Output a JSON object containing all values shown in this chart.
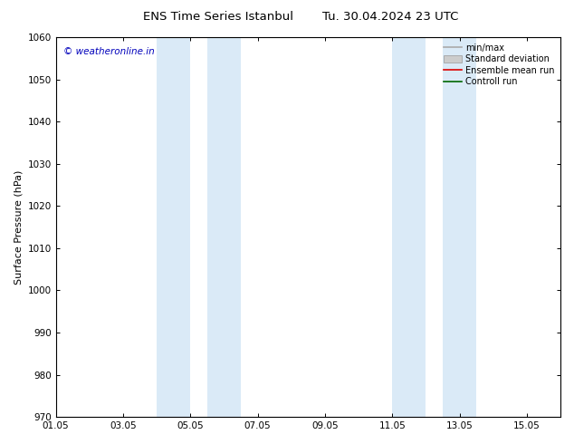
{
  "title_left": "ENS Time Series Istanbul",
  "title_right": "Tu. 30.04.2024 23 UTC",
  "ylabel": "Surface Pressure (hPa)",
  "ylim": [
    970,
    1060
  ],
  "yticks": [
    970,
    980,
    990,
    1000,
    1010,
    1020,
    1030,
    1040,
    1050,
    1060
  ],
  "xlim_start": 0,
  "xlim_end": 15,
  "xtick_labels": [
    "01.05",
    "03.05",
    "05.05",
    "07.05",
    "09.05",
    "11.05",
    "13.05",
    "15.05"
  ],
  "xtick_positions": [
    0,
    2,
    4,
    6,
    8,
    10,
    12,
    14
  ],
  "shaded_bands": [
    {
      "xmin": 3.0,
      "xmax": 4.0
    },
    {
      "xmin": 4.5,
      "xmax": 5.5
    },
    {
      "xmin": 10.0,
      "xmax": 11.0
    },
    {
      "xmin": 11.5,
      "xmax": 12.5
    }
  ],
  "shade_color": "#daeaf7",
  "background_color": "#ffffff",
  "watermark_text": "© weatheronline.in",
  "watermark_color": "#0000bb",
  "legend_items": [
    {
      "label": "min/max",
      "color": "#aaaaaa",
      "lw": 1.2,
      "type": "line"
    },
    {
      "label": "Standard deviation",
      "color": "#cccccc",
      "lw": 5,
      "type": "bar"
    },
    {
      "label": "Ensemble mean run",
      "color": "#dd0000",
      "lw": 1.2,
      "type": "line"
    },
    {
      "label": "Controll run",
      "color": "#006600",
      "lw": 1.2,
      "type": "line"
    }
  ],
  "title_fontsize": 9.5,
  "axis_label_fontsize": 8,
  "tick_fontsize": 7.5,
  "watermark_fontsize": 7.5,
  "legend_fontsize": 7
}
